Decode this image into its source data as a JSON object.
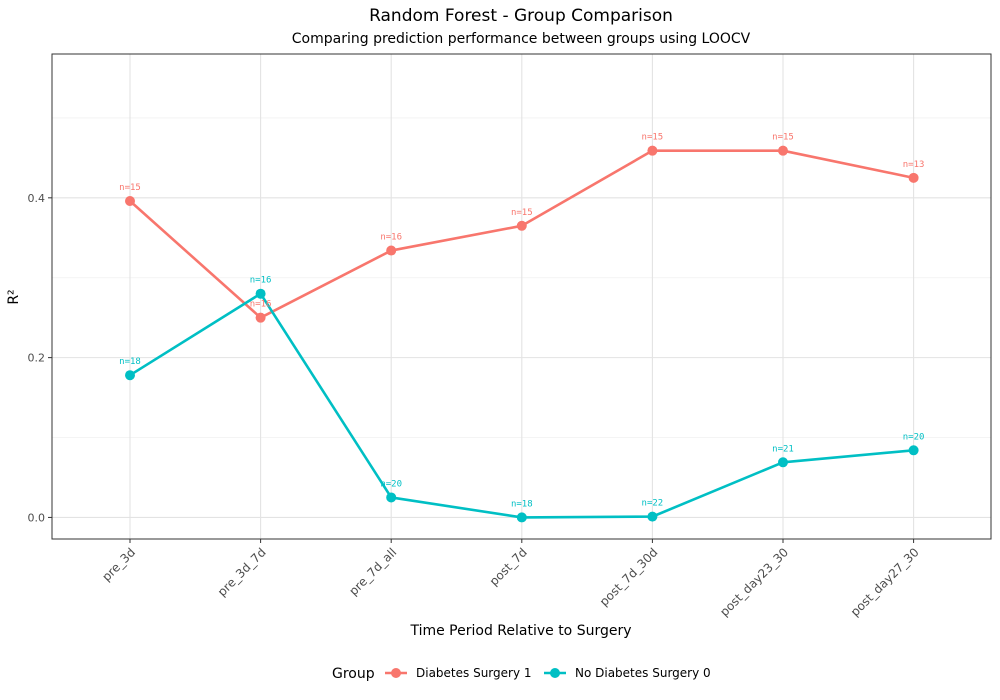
{
  "chart_data": {
    "type": "line",
    "title": "Random Forest - Group Comparison",
    "subtitle": "Comparing prediction performance between groups using LOOCV",
    "xlabel": "Time Period Relative to Surgery",
    "ylabel": "R²",
    "categories": [
      "pre_3d",
      "pre_3d_7d",
      "pre_7d_all",
      "post_7d",
      "post_7d_30d",
      "post_day23_30",
      "post_day27_30"
    ],
    "yticks": [
      0.0,
      0.2,
      0.4
    ],
    "ytick_labels": [
      "0.0",
      "0.2",
      "0.4"
    ],
    "ylim": [
      -0.027,
      0.58
    ],
    "grid": true,
    "legend": {
      "title": "Group",
      "position": "bottom",
      "entries": [
        "Diabetes Surgery 1",
        "No Diabetes Surgery 0"
      ]
    },
    "series": [
      {
        "name": "Diabetes Surgery 1",
        "color": "#F8766D",
        "values": [
          0.396,
          0.25,
          0.334,
          0.365,
          0.459,
          0.459,
          0.425
        ],
        "labels": [
          "n=15",
          "n=16",
          "n=16",
          "n=15",
          "n=15",
          "n=15",
          "n=13"
        ]
      },
      {
        "name": "No Diabetes Surgery 0",
        "color": "#00BFC4",
        "values": [
          0.178,
          0.28,
          0.025,
          0.0,
          0.001,
          0.069,
          0.084
        ],
        "labels": [
          "n=18",
          "n=16",
          "n=20",
          "n=18",
          "n=22",
          "n=21",
          "n=20"
        ]
      }
    ]
  }
}
